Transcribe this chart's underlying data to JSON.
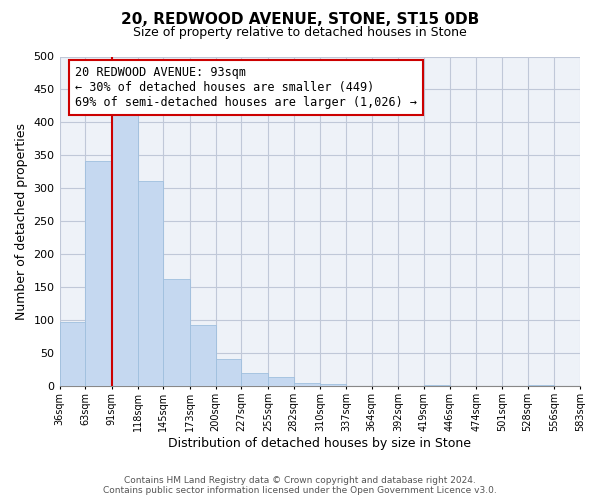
{
  "title": "20, REDWOOD AVENUE, STONE, ST15 0DB",
  "subtitle": "Size of property relative to detached houses in Stone",
  "xlabel": "Distribution of detached houses by size in Stone",
  "ylabel": "Number of detached properties",
  "bar_values": [
    97,
    342,
    414,
    311,
    163,
    93,
    42,
    20,
    14,
    5,
    3,
    0,
    0,
    0,
    2,
    0,
    0,
    0,
    2
  ],
  "bin_labels": [
    "36sqm",
    "63sqm",
    "91sqm",
    "118sqm",
    "145sqm",
    "173sqm",
    "200sqm",
    "227sqm",
    "255sqm",
    "282sqm",
    "310sqm",
    "337sqm",
    "364sqm",
    "392sqm",
    "419sqm",
    "446sqm",
    "474sqm",
    "501sqm",
    "528sqm",
    "556sqm",
    "583sqm"
  ],
  "bar_color": "#c5d8f0",
  "bar_edge_color": "#9fbfde",
  "property_line_color": "#cc0000",
  "annotation_text": "20 REDWOOD AVENUE: 93sqm\n← 30% of detached houses are smaller (449)\n69% of semi-detached houses are larger (1,026) →",
  "annotation_box_color": "#ffffff",
  "annotation_box_edge_color": "#cc0000",
  "ylim": [
    0,
    500
  ],
  "yticks": [
    0,
    50,
    100,
    150,
    200,
    250,
    300,
    350,
    400,
    450,
    500
  ],
  "background_color": "#ffffff",
  "plot_bg_color": "#eef2f8",
  "grid_color": "#c0c8d8",
  "footer_line1": "Contains HM Land Registry data © Crown copyright and database right 2024.",
  "footer_line2": "Contains public sector information licensed under the Open Government Licence v3.0."
}
